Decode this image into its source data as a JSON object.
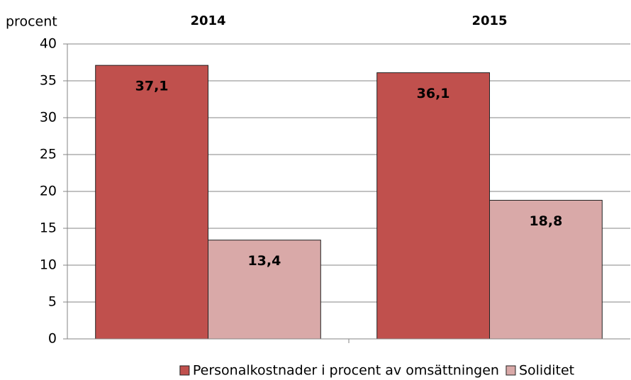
{
  "chart_data": {
    "type": "bar",
    "y_label": "procent",
    "categories": [
      "2014",
      "2015"
    ],
    "series": [
      {
        "name": "Personalkostnader i procent av omsättningen",
        "color": "#c0504d",
        "values": [
          37.1,
          36.1
        ],
        "value_labels": [
          "37,1",
          "36,1"
        ]
      },
      {
        "name": "Soliditet",
        "color": "#d9a9a8",
        "values": [
          13.4,
          18.8
        ],
        "value_labels": [
          "13,4",
          "18,8"
        ]
      }
    ],
    "ylim": [
      0,
      40
    ],
    "yticks": [
      0,
      5,
      10,
      15,
      20,
      25,
      30,
      35,
      40
    ],
    "grid": true,
    "legend": "bottom"
  }
}
